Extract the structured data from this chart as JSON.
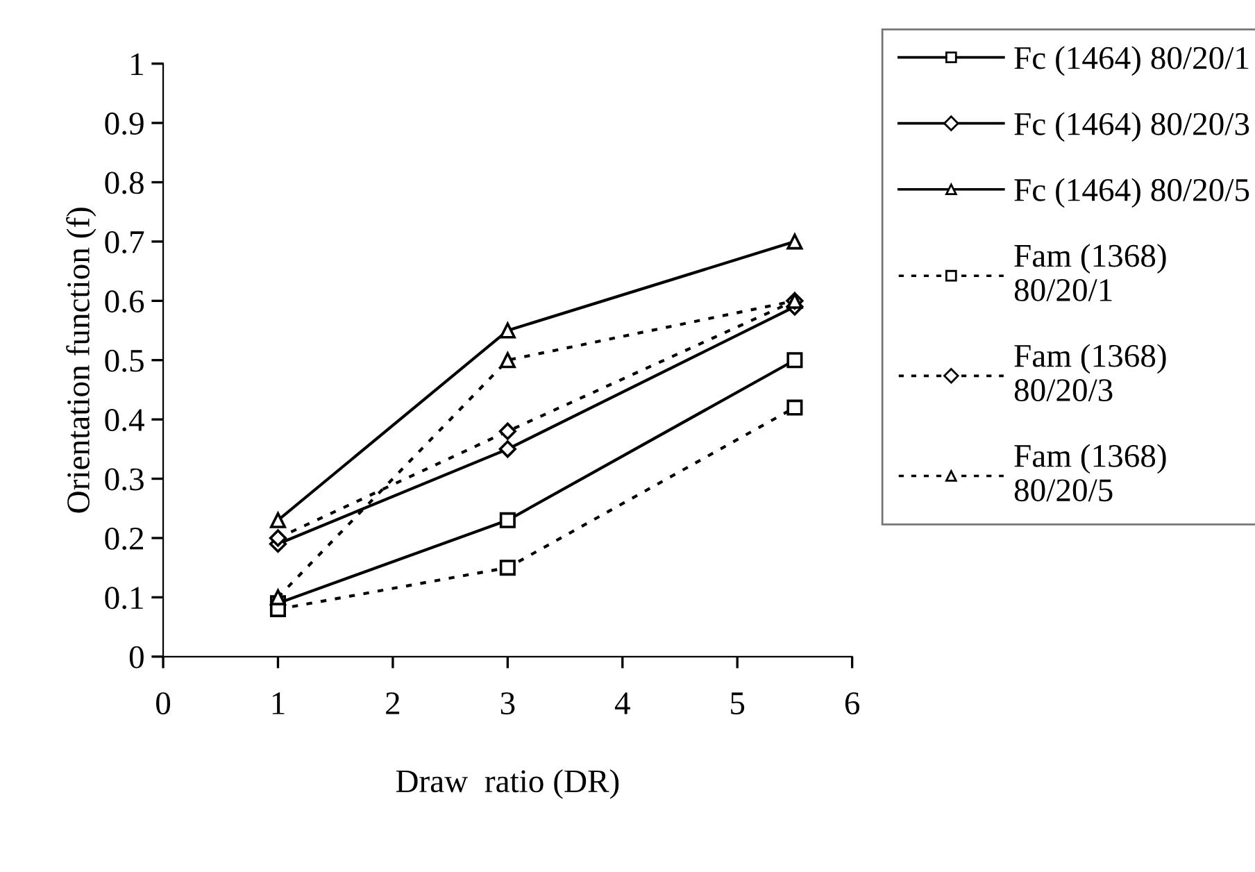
{
  "chart_data": {
    "type": "line",
    "xlabel": "Draw  ratio (DR)",
    "ylabel": "Orientation function (f)",
    "x": [
      1,
      3,
      5.5
    ],
    "xlim": [
      0,
      6
    ],
    "xticks": [
      0,
      1,
      2,
      3,
      4,
      5,
      6
    ],
    "ylim": [
      0,
      1
    ],
    "yticks": [
      0,
      0.1,
      0.2,
      0.3,
      0.4,
      0.5,
      0.6,
      0.7,
      0.8,
      0.9,
      1
    ],
    "grid": false,
    "legend": "right",
    "series": [
      {
        "name": "Fc (1464) 80/20/1",
        "color": "#000000",
        "marker": "square",
        "line_style": "solid",
        "values": [
          0.09,
          0.23,
          0.5
        ]
      },
      {
        "name": "Fc (1464) 80/20/3",
        "color": "#000000",
        "marker": "diamond",
        "line_style": "solid",
        "values": [
          0.19,
          0.35,
          0.59
        ]
      },
      {
        "name": "Fc (1464) 80/20/5",
        "color": "#000000",
        "marker": "triangle",
        "line_style": "solid",
        "values": [
          0.23,
          0.55,
          0.7
        ]
      },
      {
        "name": "Fam (1368)\n80/20/1",
        "color": "#000000",
        "marker": "square",
        "line_style": "dotted",
        "values": [
          0.08,
          0.15,
          0.42
        ]
      },
      {
        "name": "Fam (1368)\n80/20/3",
        "color": "#000000",
        "marker": "diamond",
        "line_style": "dotted",
        "values": [
          0.2,
          0.38,
          0.6
        ]
      },
      {
        "name": "Fam (1368)\n80/20/5",
        "color": "#000000",
        "marker": "triangle",
        "line_style": "dotted",
        "values": [
          0.1,
          0.5,
          0.6
        ]
      }
    ]
  }
}
